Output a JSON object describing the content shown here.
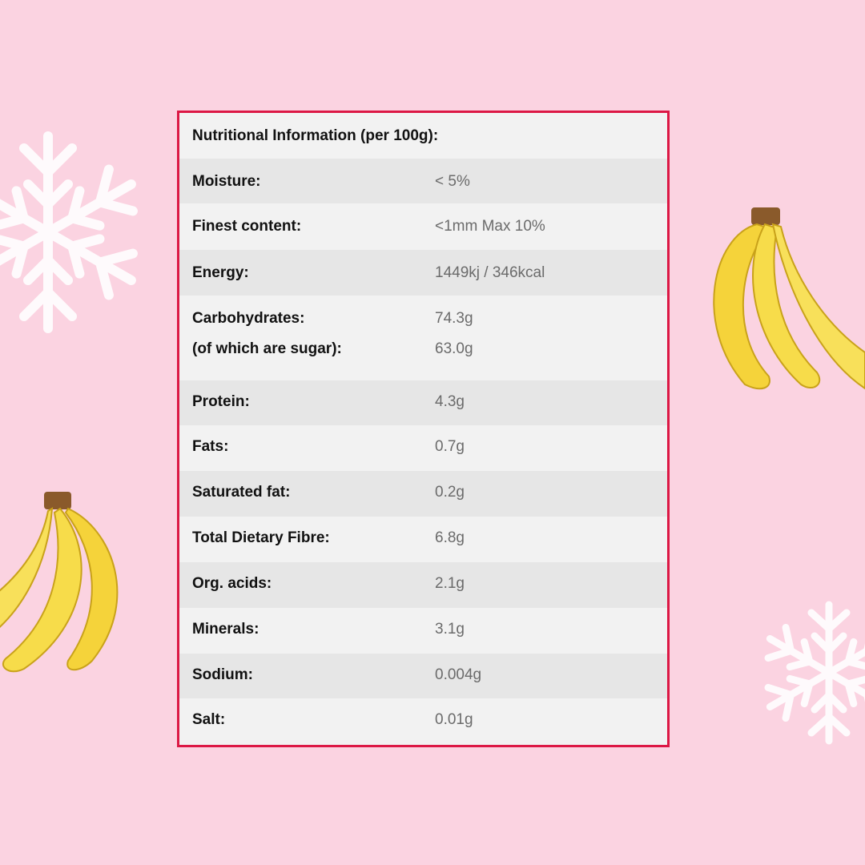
{
  "title": "Nutritional Information (per 100g):",
  "rows": [
    {
      "label": "Moisture:",
      "value": "< 5%"
    },
    {
      "label": "Finest content:",
      "value": "<1mm Max 10%"
    },
    {
      "label": "Energy:",
      "value": "1449kj / 346kcal"
    },
    {
      "label": "Carbohydrates:",
      "value": "74.3g",
      "sub_label": "(of which are sugar):",
      "sub_value": "63.0g"
    },
    {
      "label": "Protein:",
      "value": "4.3g"
    },
    {
      "label": "Fats:",
      "value": "0.7g"
    },
    {
      "label": "Saturated fat:",
      "value": "0.2g"
    },
    {
      "label": "Total Dietary Fibre:",
      "value": "6.8g"
    },
    {
      "label": "Org. acids:",
      "value": "2.1g"
    },
    {
      "label": "Minerals:",
      "value": "3.1g"
    },
    {
      "label": "Sodium:",
      "value": "0.004g"
    },
    {
      "label": "Salt:",
      "value": "0.01g"
    }
  ],
  "colors": {
    "background": "#fbd3e1",
    "border": "#dc1845",
    "row_light": "#f2f2f2",
    "row_dark": "#e6e6e6"
  }
}
